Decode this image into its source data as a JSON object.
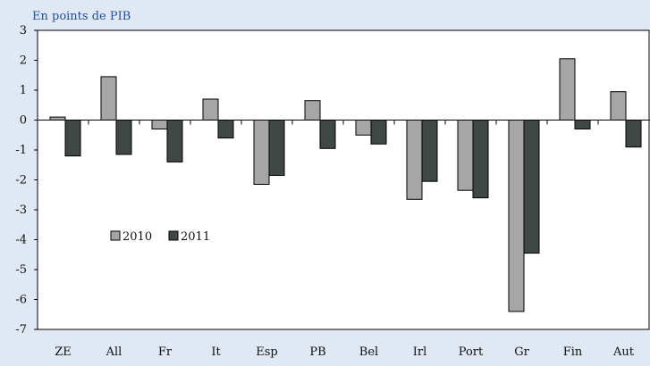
{
  "chart_data": {
    "type": "bar",
    "title": "En points de PIB",
    "categories": [
      "ZE",
      "All",
      "Fr",
      "It",
      "Esp",
      "PB",
      "Bel",
      "Irl",
      "Port",
      "Gr",
      "Fin",
      "Aut"
    ],
    "series": [
      {
        "name": "2010",
        "values": [
          0.1,
          1.45,
          -0.3,
          0.7,
          -2.15,
          0.65,
          -0.5,
          -2.65,
          -2.35,
          -6.4,
          2.05,
          0.95
        ],
        "color": "#a6a6a6"
      },
      {
        "name": "2011",
        "values": [
          -1.2,
          -1.15,
          -1.4,
          -0.6,
          -1.85,
          -0.95,
          -0.8,
          -2.05,
          -2.6,
          -4.45,
          -0.3,
          -0.9
        ],
        "color": "#404845"
      }
    ],
    "ylim": [
      -7,
      3
    ],
    "yticks": [
      "3",
      "2",
      "1",
      "0",
      "-1",
      "-2",
      "-3",
      "-4",
      "-5",
      "-6",
      "-7"
    ],
    "xlabel": "",
    "ylabel": "",
    "grid": false,
    "legend": "inside-left"
  }
}
